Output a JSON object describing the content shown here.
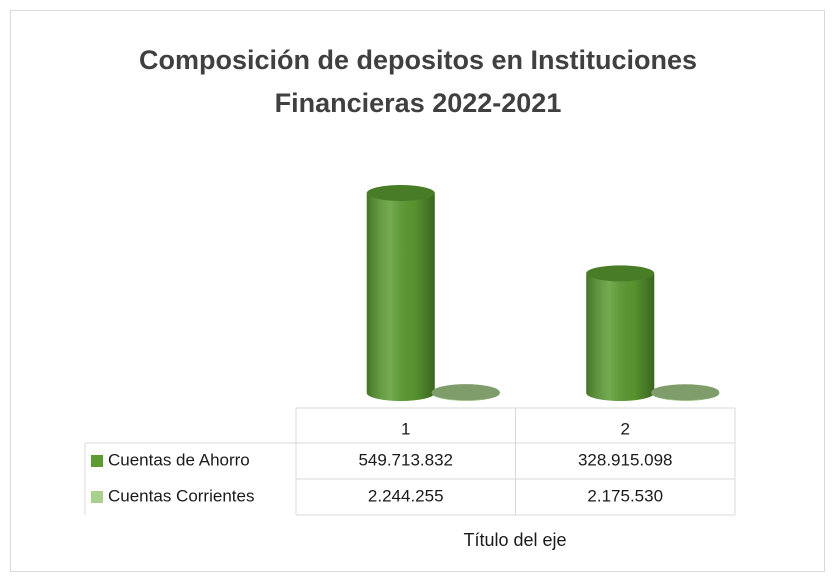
{
  "chart_data": {
    "type": "bar",
    "title": [
      "Composición de depositos en Instituciones",
      "Financieras 2022-2021"
    ],
    "categories": [
      "1",
      "2"
    ],
    "series": [
      {
        "name": "Cuentas de Ahorro",
        "color": "#5b9b31",
        "values": [
          549713832,
          328915098
        ],
        "value_labels": [
          "549.713.832",
          "328.915.098"
        ]
      },
      {
        "name": "Cuentas Corrientes",
        "color": "#a9d18e",
        "values": [
          2244255,
          2175530
        ],
        "value_labels": [
          "2.244.255",
          "2.175.530"
        ]
      }
    ],
    "x_label": "Título del eje"
  }
}
